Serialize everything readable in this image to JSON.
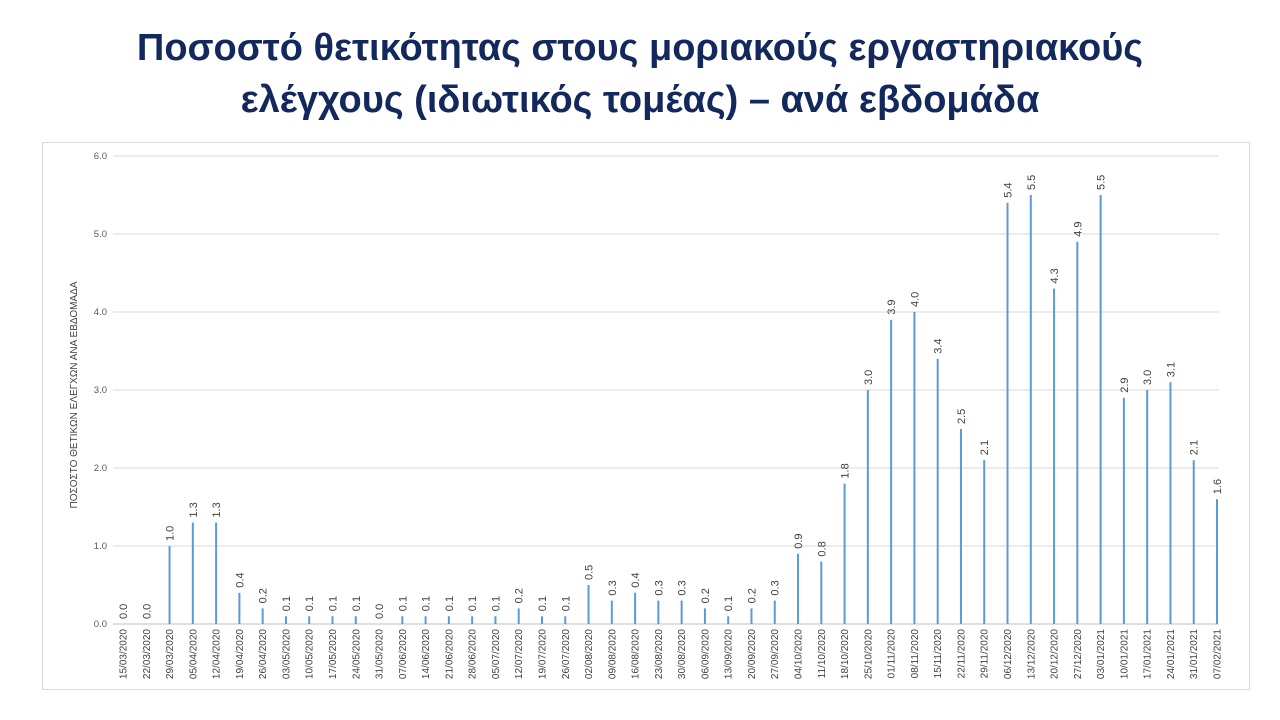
{
  "slide": {
    "title_line1": "Ποσοστό θετικότητας στους μοριακούς εργαστηριακούς",
    "title_line2": "ελέγχους (ιδιωτικός τομέας) – ανά εβδομάδα"
  },
  "chart_data": {
    "type": "bar",
    "title": "Ποσοστό θετικότητας στους μοριακούς εργαστηριακούς ελέγχους (ιδιωτικός τομέας) – ανά εβδομάδα",
    "xlabel": "",
    "ylabel": "ΠΟΣΟΣΤΟ ΘΕΤΙΚΩΝ ΕΛΕΓΧΩΝ ΑΝΑ ΕΒΔΟΜΑΔΑ",
    "ylim": [
      0,
      6
    ],
    "yticks": [
      "0.0",
      "1.0",
      "2.0",
      "3.0",
      "4.0",
      "5.0",
      "6.0"
    ],
    "grid": true,
    "bar_color": "#5b9bd5",
    "categories": [
      "15/03/2020",
      "22/03/2020",
      "29/03/2020",
      "05/04/2020",
      "12/04/2020",
      "19/04/2020",
      "26/04/2020",
      "03/05/2020",
      "10/05/2020",
      "17/05/2020",
      "24/05/2020",
      "31/05/2020",
      "07/06/2020",
      "14/06/2020",
      "21/06/2020",
      "28/06/2020",
      "05/07/2020",
      "12/07/2020",
      "19/07/2020",
      "26/07/2020",
      "02/08/2020",
      "09/08/2020",
      "16/08/2020",
      "23/08/2020",
      "30/08/2020",
      "06/09/2020",
      "13/09/2020",
      "20/09/2020",
      "27/09/2020",
      "04/10/2020",
      "11/10/2020",
      "18/10/2020",
      "25/10/2020",
      "01/11/2020",
      "08/11/2020",
      "15/11/2020",
      "22/11/2020",
      "29/11/2020",
      "06/12/2020",
      "13/12/2020",
      "20/12/2020",
      "27/12/2020",
      "03/01/2021",
      "10/01/2021",
      "17/01/2021",
      "24/01/2021",
      "31/01/2021",
      "07/02/2021"
    ],
    "values": [
      0.0,
      0.0,
      1.0,
      1.3,
      1.3,
      0.4,
      0.2,
      0.1,
      0.1,
      0.1,
      0.1,
      0.0,
      0.1,
      0.1,
      0.1,
      0.1,
      0.1,
      0.2,
      0.1,
      0.1,
      0.5,
      0.3,
      0.4,
      0.3,
      0.3,
      0.2,
      0.1,
      0.2,
      0.3,
      0.9,
      0.8,
      1.8,
      3.0,
      3.9,
      4.0,
      3.4,
      2.5,
      2.1,
      5.4,
      5.5,
      4.3,
      4.9,
      5.5,
      2.9,
      3.0,
      3.1,
      2.1,
      1.6
    ],
    "labels": [
      "0.0",
      "0.0",
      "1.0",
      "1.3",
      "1.3",
      "0.4",
      "0.2",
      "0.1",
      "0.1",
      "0.1",
      "0.1",
      "0.0",
      "0.1",
      "0.1",
      "0.1",
      "0.1",
      "0.1",
      "0.2",
      "0.1",
      "0.1",
      "0.5",
      "0.3",
      "0.4",
      "0.3",
      "0.3",
      "0.2",
      "0.1",
      "0.2",
      "0.3",
      "0.9",
      "0.8",
      "1.8",
      "3.0",
      "3.9",
      "4.0",
      "3.4",
      "2.5",
      "2.1",
      "5.4",
      "5.5",
      "4.3",
      "4.9",
      "5.5",
      "2.9",
      "3.0",
      "3.1",
      "2.1",
      "1.6"
    ]
  }
}
